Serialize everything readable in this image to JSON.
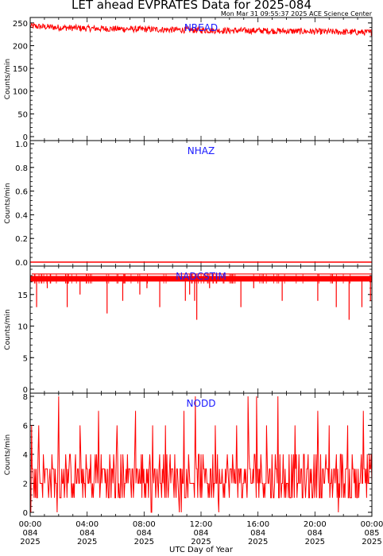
{
  "title": "LET ahead EVPRATES Data for 2025-084",
  "timestamp": "Mon Mar 31 09:55:37 2025 ACE Science Center",
  "x_axis_label": "UTC Day of Year",
  "series_color": "#ff0000",
  "label_color": "#1a1aff",
  "chart_data": {
    "type": "line",
    "title": "LET ahead EVPRATES Data for 2025-084",
    "xlabel": "UTC Day of Year",
    "x_range_hours": [
      0,
      24
    ],
    "x_ticks": [
      {
        "time": "00:00",
        "day": "084",
        "year": "2025"
      },
      {
        "time": "04:00",
        "day": "084",
        "year": "2025"
      },
      {
        "time": "08:00",
        "day": "084",
        "year": "2025"
      },
      {
        "time": "12:00",
        "day": "084",
        "year": "2025"
      },
      {
        "time": "16:00",
        "day": "084",
        "year": "2025"
      },
      {
        "time": "20:00",
        "day": "084",
        "year": "2025"
      },
      {
        "time": "00:00",
        "day": "085",
        "year": "2025"
      }
    ],
    "panels": [
      {
        "name": "NREAD",
        "ylabel": "Counts/min",
        "ylim": [
          0,
          255
        ],
        "yticks": [
          "0",
          "50",
          "100",
          "150",
          "200",
          "250"
        ],
        "sample_hours": [
          0,
          2,
          4,
          6,
          8,
          10,
          12,
          14,
          16,
          18,
          20,
          22,
          24
        ],
        "values": [
          243,
          240,
          238,
          237,
          236,
          235,
          234,
          233,
          233,
          232,
          231,
          230,
          229
        ],
        "spread": 14
      },
      {
        "name": "NHAZ",
        "ylabel": "Counts/min",
        "ylim": [
          0,
          1.0
        ],
        "yticks": [
          "0.0",
          "0.2",
          "0.4",
          "0.6",
          "0.8",
          "1.0"
        ],
        "sample_hours": [
          0,
          24
        ],
        "values": [
          0,
          0
        ],
        "spread": 0
      },
      {
        "name": "NADCSTIM",
        "ylabel": "Counts/min",
        "ylim": [
          0,
          19
        ],
        "yticks": [
          "0",
          "5",
          "10",
          "15"
        ],
        "baseline": 17.5,
        "dips": [
          {
            "hour": 0.45,
            "value": 13
          },
          {
            "hour": 1.2,
            "value": 16
          },
          {
            "hour": 2.6,
            "value": 13
          },
          {
            "hour": 3.5,
            "value": 15
          },
          {
            "hour": 5.4,
            "value": 12
          },
          {
            "hour": 6.5,
            "value": 14
          },
          {
            "hour": 7.7,
            "value": 15
          },
          {
            "hour": 8.2,
            "value": 16
          },
          {
            "hour": 9.1,
            "value": 13
          },
          {
            "hour": 10.9,
            "value": 14
          },
          {
            "hour": 11.2,
            "value": 15
          },
          {
            "hour": 11.55,
            "value": 14
          },
          {
            "hour": 11.7,
            "value": 11
          },
          {
            "hour": 12.6,
            "value": 16
          },
          {
            "hour": 14.8,
            "value": 13
          },
          {
            "hour": 15.7,
            "value": 16
          },
          {
            "hour": 17.7,
            "value": 14
          },
          {
            "hour": 20.2,
            "value": 14
          },
          {
            "hour": 21.5,
            "value": 13
          },
          {
            "hour": 22.4,
            "value": 11
          },
          {
            "hour": 23.3,
            "value": 13
          },
          {
            "hour": 23.9,
            "value": 14
          }
        ]
      },
      {
        "name": "NODD",
        "ylabel": "Counts/min",
        "ylim": [
          0,
          8
        ],
        "yticks": [
          "0",
          "2",
          "4",
          "6",
          "8"
        ],
        "typical_range": [
          1,
          4
        ],
        "peaks": [
          {
            "hour": 0.1,
            "value": 6
          },
          {
            "hour": 0.6,
            "value": 6
          },
          {
            "hour": 2.0,
            "value": 8
          },
          {
            "hour": 3.5,
            "value": 6
          },
          {
            "hour": 4.8,
            "value": 7
          },
          {
            "hour": 6.1,
            "value": 6
          },
          {
            "hour": 7.4,
            "value": 7
          },
          {
            "hour": 8.6,
            "value": 6
          },
          {
            "hour": 9.5,
            "value": 6
          },
          {
            "hour": 10.8,
            "value": 7
          },
          {
            "hour": 11.6,
            "value": 8
          },
          {
            "hour": 13.0,
            "value": 6
          },
          {
            "hour": 14.5,
            "value": 6
          },
          {
            "hour": 15.3,
            "value": 8
          },
          {
            "hour": 15.9,
            "value": 8
          },
          {
            "hour": 16.6,
            "value": 6
          },
          {
            "hour": 17.4,
            "value": 8
          },
          {
            "hour": 18.6,
            "value": 6
          },
          {
            "hour": 20.2,
            "value": 7
          },
          {
            "hour": 21.0,
            "value": 6
          },
          {
            "hour": 22.3,
            "value": 6
          },
          {
            "hour": 23.4,
            "value": 7
          }
        ]
      }
    ]
  }
}
